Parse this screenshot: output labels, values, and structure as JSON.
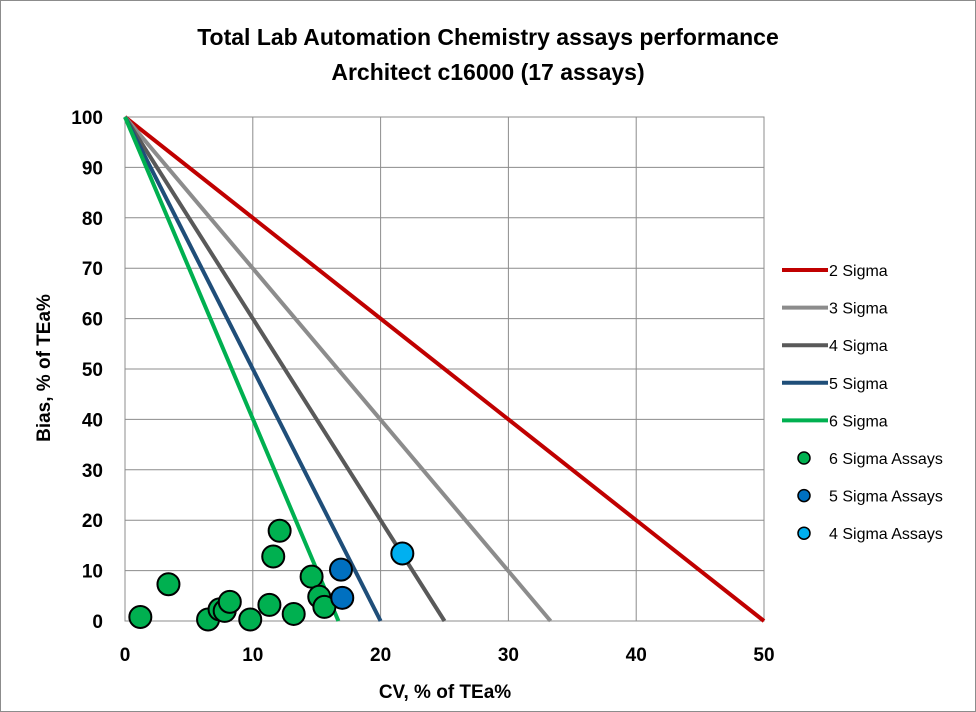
{
  "chart_data": {
    "type": "scatter",
    "title": [
      "Total Lab Automation Chemistry assays performance",
      "Architect c16000 (17 assays)"
    ],
    "xlabel": "CV, % of TEa%",
    "ylabel": "Bias, % of TEa%",
    "xlim": [
      0,
      50
    ],
    "ylim": [
      0,
      100
    ],
    "xticks": [
      0,
      10,
      20,
      30,
      40,
      50
    ],
    "yticks": [
      0,
      10,
      20,
      30,
      40,
      50,
      60,
      70,
      80,
      90,
      100
    ],
    "grid": true,
    "legend_position": "right",
    "lines": [
      {
        "name": "2 Sigma",
        "color": "#c00000",
        "x": [
          0,
          50
        ],
        "y": [
          100,
          0
        ]
      },
      {
        "name": "3 Sigma",
        "color": "#8c8c8c",
        "x": [
          0,
          33.3
        ],
        "y": [
          100,
          0
        ]
      },
      {
        "name": "4 Sigma",
        "color": "#595959",
        "x": [
          0,
          25
        ],
        "y": [
          100,
          0
        ]
      },
      {
        "name": "5 Sigma",
        "color": "#1f4e79",
        "x": [
          0,
          20
        ],
        "y": [
          100,
          0
        ]
      },
      {
        "name": "6 Sigma",
        "color": "#00b050",
        "x": [
          0,
          16.7
        ],
        "y": [
          100,
          0
        ]
      }
    ],
    "series": [
      {
        "name": "6 Sigma Assays",
        "color": "#00b050",
        "points": [
          [
            1.2,
            0.8
          ],
          [
            3.4,
            7.3
          ],
          [
            6.5,
            0.3
          ],
          [
            7.4,
            2.3
          ],
          [
            7.8,
            2.0
          ],
          [
            8.2,
            3.8
          ],
          [
            9.8,
            0.3
          ],
          [
            11.3,
            3.2
          ],
          [
            11.6,
            12.8
          ],
          [
            12.1,
            17.9
          ],
          [
            13.2,
            1.4
          ],
          [
            14.6,
            8.8
          ],
          [
            15.2,
            4.8
          ],
          [
            15.6,
            2.8
          ]
        ]
      },
      {
        "name": "5 Sigma Assays",
        "color": "#0070c0",
        "points": [
          [
            16.9,
            10.2
          ],
          [
            17.0,
            4.6
          ]
        ]
      },
      {
        "name": "4 Sigma Assays",
        "color": "#00b0f0",
        "points": [
          [
            21.7,
            13.4
          ]
        ]
      }
    ]
  }
}
